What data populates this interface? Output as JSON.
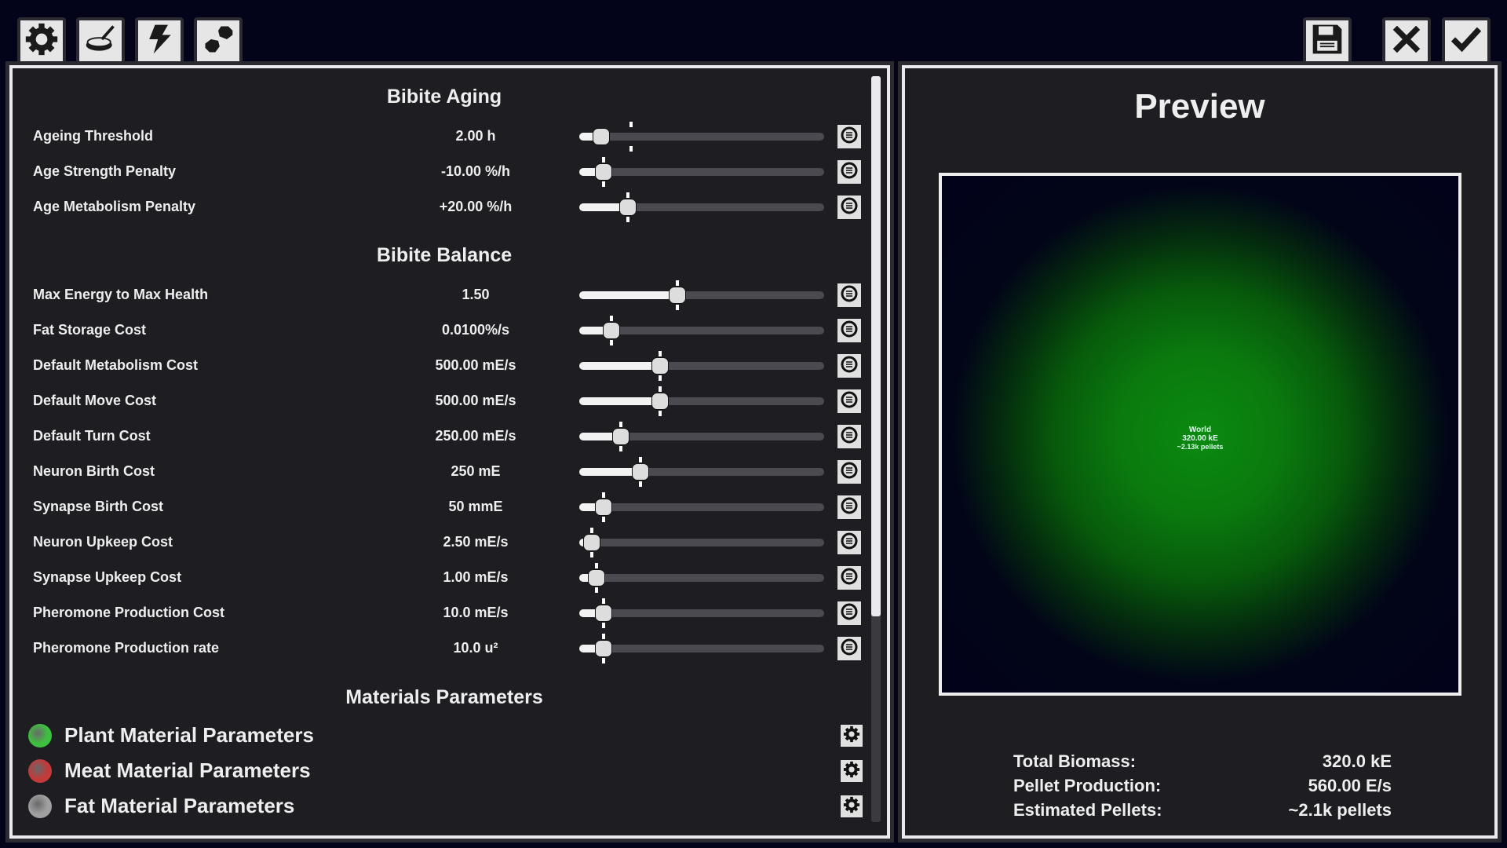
{
  "toolbar": {
    "left": [
      {
        "icon": "gear-icon"
      },
      {
        "icon": "petri-dish-icon"
      },
      {
        "icon": "lightning-icon"
      },
      {
        "icon": "pellets-icon"
      }
    ],
    "right": [
      {
        "icon": "save-icon"
      },
      {
        "icon": "close-icon"
      },
      {
        "icon": "check-icon"
      }
    ]
  },
  "settings": {
    "sections": [
      {
        "title": "Bibite Aging",
        "rows": [
          {
            "label": "Ageing Threshold",
            "value": "2.00 h",
            "fraction": 0.09,
            "default": 0.21
          },
          {
            "label": "Age Strength Penalty",
            "value": "-10.00 %/h",
            "fraction": 0.1,
            "default": 0.1
          },
          {
            "label": "Age Metabolism Penalty",
            "value": "+20.00 %/h",
            "fraction": 0.2,
            "default": 0.2
          }
        ]
      },
      {
        "title": "Bibite Balance",
        "rows": [
          {
            "label": "Max Energy to Max Health",
            "value": "1.50",
            "fraction": 0.4,
            "default": 0.4
          },
          {
            "label": "Fat Storage Cost",
            "value": "0.0100%/s",
            "fraction": 0.13,
            "default": 0.13
          },
          {
            "label": "Default Metabolism Cost",
            "value": "500.00 mE/s",
            "fraction": 0.33,
            "default": 0.33
          },
          {
            "label": "Default Move Cost",
            "value": "500.00 mE/s",
            "fraction": 0.33,
            "default": 0.33
          },
          {
            "label": "Default Turn Cost",
            "value": "250.00 mE/s",
            "fraction": 0.17,
            "default": 0.17
          },
          {
            "label": "Neuron Birth Cost",
            "value": "250 mE",
            "fraction": 0.25,
            "default": 0.25
          },
          {
            "label": "Synapse Birth Cost",
            "value": "50 mmE",
            "fraction": 0.1,
            "default": 0.1
          },
          {
            "label": "Neuron Upkeep Cost",
            "value": "2.50 mE/s",
            "fraction": 0.05,
            "default": 0.05
          },
          {
            "label": "Synapse Upkeep Cost",
            "value": "1.00 mE/s",
            "fraction": 0.07,
            "default": 0.07
          },
          {
            "label": "Pheromone Production Cost",
            "value": "10.0 mE/s",
            "fraction": 0.1,
            "default": 0.1
          },
          {
            "label": "Pheromone Production rate",
            "value": "10.0 u²",
            "fraction": 0.1,
            "default": 0.1
          }
        ]
      }
    ],
    "materials_title": "Materials Parameters",
    "materials": [
      {
        "label": "Plant Material Parameters",
        "color": "#3fbf3f"
      },
      {
        "label": "Meat Material Parameters",
        "color": "#c23a3a"
      },
      {
        "label": "Fat Material Parameters",
        "color": "#a0a0a0"
      }
    ]
  },
  "preview": {
    "title": "Preview",
    "world_label": "World",
    "world_energy": "320.00 kE",
    "world_pellets": "~2.13k pellets",
    "stats": [
      {
        "label": "Total Biomass:",
        "value": "320.0 kE"
      },
      {
        "label": "Pellet Production:",
        "value": "560.00 E/s"
      },
      {
        "label": "Estimated Pellets:",
        "value": "~2.1k pellets"
      }
    ]
  }
}
